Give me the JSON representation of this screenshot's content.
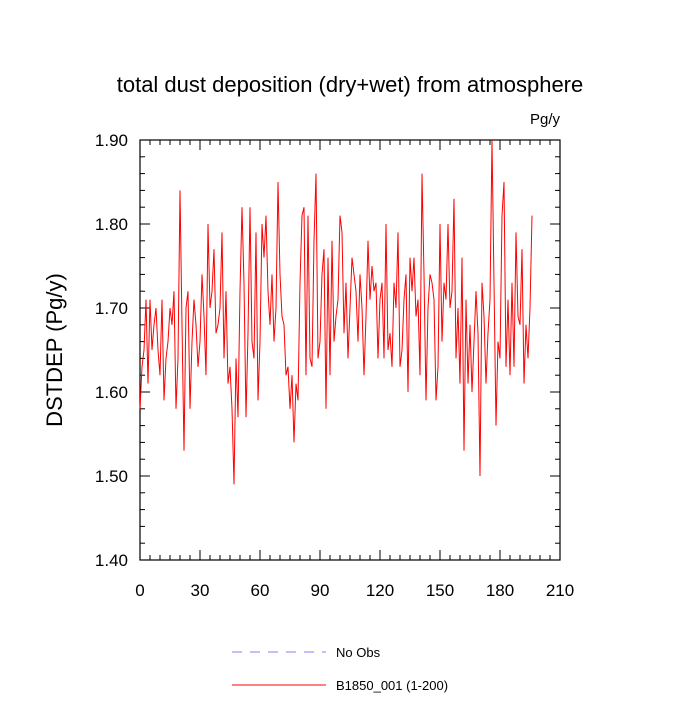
{
  "chart_data": {
    "type": "line",
    "title": "total dust deposition (dry+wet) from atmosphere",
    "units_label": "Pg/y",
    "ylabel": "DSTDEP  (Pg/y)",
    "xlabel": "",
    "xlim": [
      0,
      210
    ],
    "ylim": [
      1.4,
      1.9
    ],
    "x_ticks": [
      0,
      30,
      60,
      90,
      120,
      150,
      180,
      210
    ],
    "x_tick_labels": [
      "0",
      "30",
      "60",
      "90",
      "120",
      "150",
      "180",
      "210"
    ],
    "y_ticks": [
      1.4,
      1.5,
      1.6,
      1.7,
      1.8,
      1.9
    ],
    "y_tick_labels": [
      "1.40",
      "1.50",
      "1.60",
      "1.70",
      "1.80",
      "1.90"
    ],
    "grid": false,
    "legend_position": "bottom-center",
    "series": [
      {
        "name": "No Obs",
        "color": "#8080ff",
        "dashed": true,
        "values": []
      },
      {
        "name": "B1850_001 (1-200)",
        "color": "#ff0000",
        "dashed": false,
        "x_start": 0,
        "values": [
          1.58,
          1.63,
          1.65,
          1.71,
          1.61,
          1.71,
          1.65,
          1.68,
          1.7,
          1.65,
          1.62,
          1.71,
          1.59,
          1.64,
          1.66,
          1.7,
          1.68,
          1.72,
          1.58,
          1.64,
          1.84,
          1.68,
          1.53,
          1.7,
          1.72,
          1.58,
          1.66,
          1.71,
          1.68,
          1.63,
          1.66,
          1.74,
          1.69,
          1.62,
          1.8,
          1.7,
          1.72,
          1.77,
          1.67,
          1.68,
          1.7,
          1.79,
          1.64,
          1.72,
          1.61,
          1.63,
          1.58,
          1.49,
          1.64,
          1.57,
          1.72,
          1.82,
          1.73,
          1.57,
          1.67,
          1.82,
          1.66,
          1.64,
          1.79,
          1.59,
          1.66,
          1.8,
          1.76,
          1.81,
          1.72,
          1.68,
          1.74,
          1.66,
          1.7,
          1.85,
          1.74,
          1.69,
          1.68,
          1.62,
          1.63,
          1.58,
          1.62,
          1.54,
          1.61,
          1.59,
          1.73,
          1.81,
          1.82,
          1.62,
          1.81,
          1.64,
          1.63,
          1.78,
          1.86,
          1.64,
          1.66,
          1.74,
          1.77,
          1.58,
          1.76,
          1.62,
          1.78,
          1.66,
          1.69,
          1.71,
          1.81,
          1.79,
          1.67,
          1.73,
          1.64,
          1.7,
          1.76,
          1.74,
          1.72,
          1.66,
          1.74,
          1.7,
          1.62,
          1.69,
          1.78,
          1.71,
          1.75,
          1.72,
          1.73,
          1.64,
          1.71,
          1.73,
          1.64,
          1.8,
          1.65,
          1.67,
          1.63,
          1.73,
          1.7,
          1.79,
          1.63,
          1.65,
          1.71,
          1.74,
          1.6,
          1.76,
          1.72,
          1.76,
          1.69,
          1.71,
          1.62,
          1.86,
          1.74,
          1.59,
          1.7,
          1.74,
          1.73,
          1.71,
          1.59,
          1.63,
          1.8,
          1.66,
          1.73,
          1.71,
          1.8,
          1.7,
          1.72,
          1.83,
          1.64,
          1.7,
          1.61,
          1.76,
          1.53,
          1.71,
          1.61,
          1.68,
          1.6,
          1.66,
          1.72,
          1.67,
          1.5,
          1.73,
          1.69,
          1.61,
          1.67,
          1.71,
          1.9,
          1.73,
          1.56,
          1.66,
          1.64,
          1.81,
          1.85,
          1.63,
          1.71,
          1.62,
          1.73,
          1.63,
          1.79,
          1.69,
          1.68,
          1.77,
          1.61,
          1.68,
          1.64,
          1.7,
          1.81
        ]
      }
    ]
  }
}
